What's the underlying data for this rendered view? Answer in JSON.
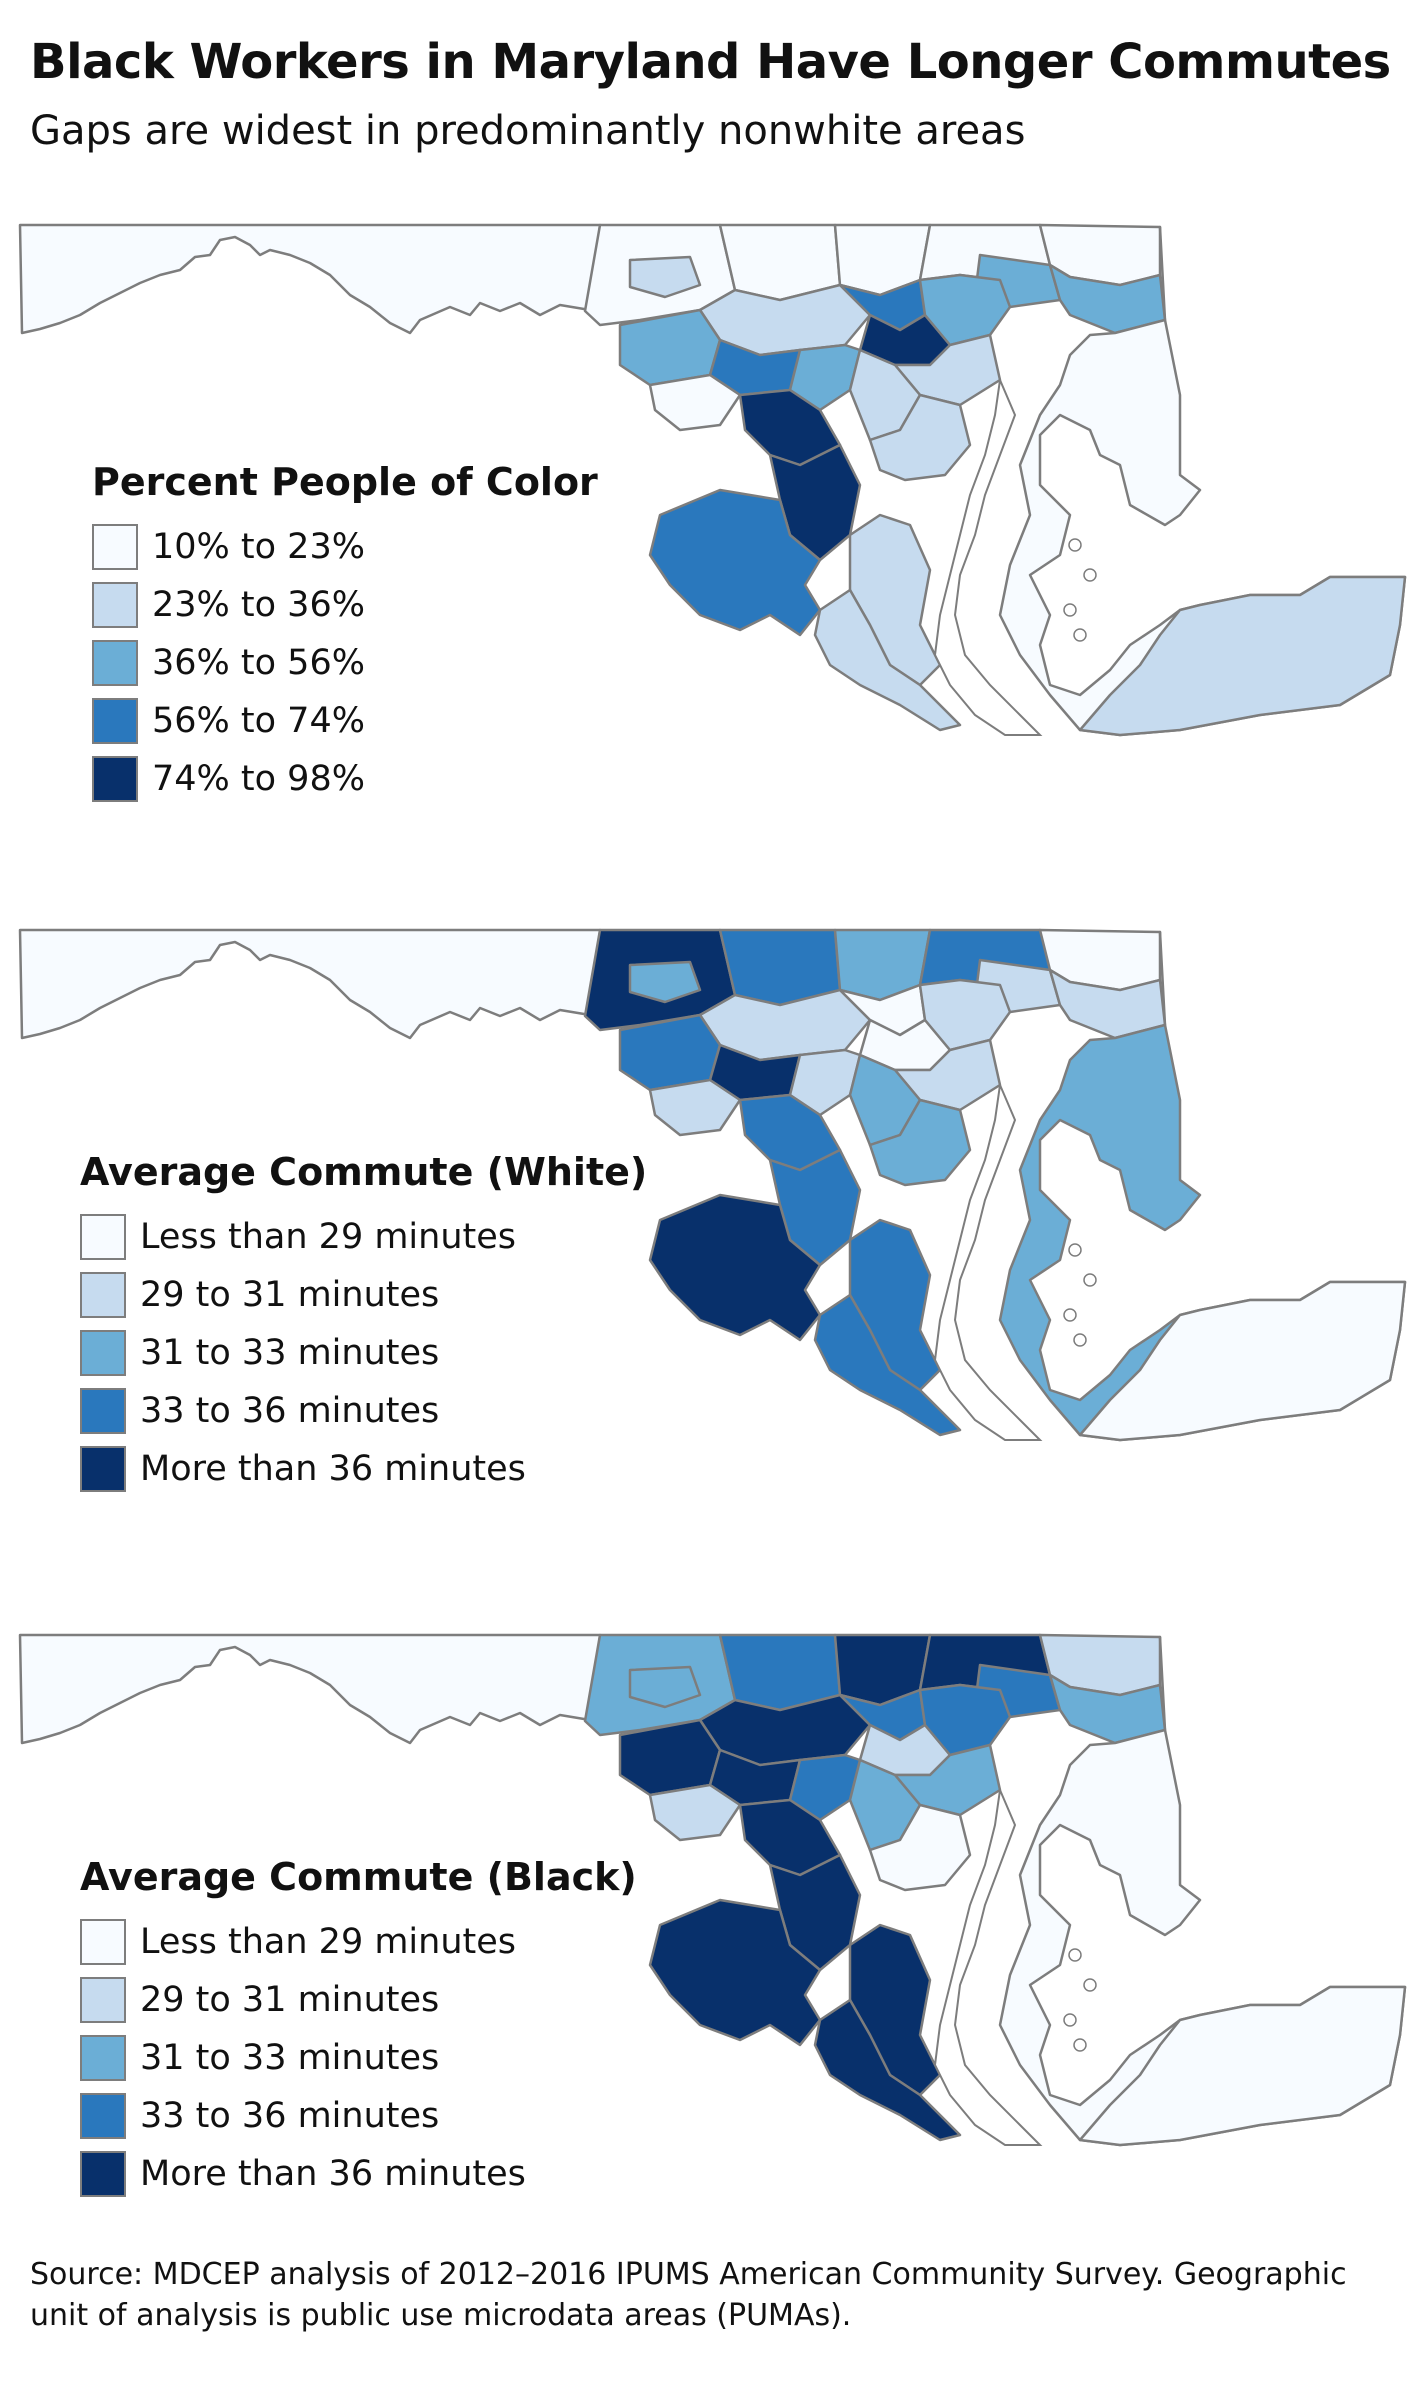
{
  "title": "Black Workers in Maryland Have Longer Commutes",
  "subtitle": "Gaps are widest in predominantly nonwhite areas",
  "colors": {
    "c0": "#f7fbff",
    "c1": "#c6dbef",
    "c2": "#6baed6",
    "c3": "#2a78bd",
    "c4": "#08306b",
    "border": "#7d7d7d"
  },
  "maps": [
    {
      "legend_title": "Percent People of Color",
      "legend": [
        "10% to 23%",
        "23% to 36%",
        "36% to 56%",
        "56% to 74%",
        "74% to 98%"
      ],
      "regions": {
        "west": 0,
        "northwest_a": 0,
        "northwest_b": 0,
        "north_a": 0,
        "north_b": 0,
        "north_c": 0,
        "northeast_corner": 2,
        "frederick_city": 1,
        "bel_air": 2,
        "balt_west": 1,
        "balt_city": 3,
        "balt_core": 4,
        "balt_east": 2,
        "balt_south": 1,
        "dc_west": 2,
        "dc_north": 3,
        "dc_mid": 2,
        "dc_east": 1,
        "dc_south": 0,
        "pg_north": 4,
        "pg_south": 4,
        "anne_arundel": 1,
        "charles": 3,
        "calvert": 1,
        "st_marys": 1,
        "eastern_shore": 0,
        "lower_shore": 1
      }
    },
    {
      "legend_title": "Average Commute (White)",
      "legend": [
        "Less than 29 minutes",
        "29 to 31 minutes",
        "31 to 33 minutes",
        "33 to 36 minutes",
        "More than 36 minutes"
      ],
      "regions": {
        "west": 0,
        "northwest_a": 4,
        "northwest_b": 3,
        "north_a": 2,
        "north_b": 3,
        "north_c": 0,
        "northeast_corner": 1,
        "frederick_city": 2,
        "bel_air": 1,
        "balt_west": 1,
        "balt_city": 0,
        "balt_core": 0,
        "balt_east": 1,
        "balt_south": 1,
        "dc_west": 3,
        "dc_north": 4,
        "dc_mid": 1,
        "dc_east": 2,
        "dc_south": 1,
        "pg_north": 3,
        "pg_south": 3,
        "anne_arundel": 2,
        "charles": 4,
        "calvert": 3,
        "st_marys": 3,
        "eastern_shore": 2,
        "lower_shore": 0
      }
    },
    {
      "legend_title": "Average Commute (Black)",
      "legend": [
        "Less than 29 minutes",
        "29 to 31 minutes",
        "31 to 33 minutes",
        "33 to 36 minutes",
        "More than 36 minutes"
      ],
      "regions": {
        "west": 0,
        "northwest_a": 2,
        "northwest_b": 3,
        "north_a": 4,
        "north_b": 4,
        "north_c": 1,
        "northeast_corner": 2,
        "frederick_city": 2,
        "bel_air": 3,
        "balt_west": 4,
        "balt_city": 3,
        "balt_core": 1,
        "balt_east": 3,
        "balt_south": 2,
        "dc_west": 4,
        "dc_north": 4,
        "dc_mid": 3,
        "dc_east": 2,
        "dc_south": 1,
        "pg_north": 4,
        "pg_south": 4,
        "anne_arundel": 0,
        "charles": 4,
        "calvert": 4,
        "st_marys": 4,
        "eastern_shore": 0,
        "lower_shore": 0
      }
    }
  ],
  "source": "Source: MDCEP analysis of 2012–2016 IPUMS American Community Survey. Geographic unit of analysis is public use microdata areas (PUMAs)."
}
